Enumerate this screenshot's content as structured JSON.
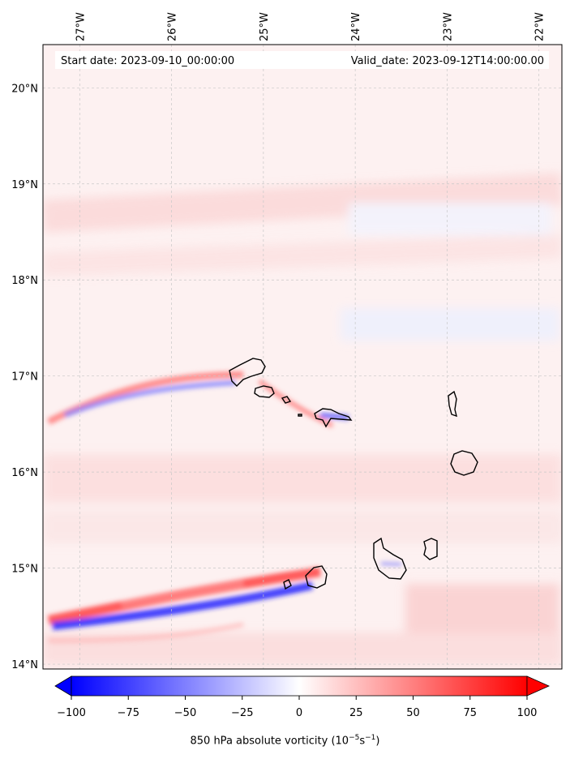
{
  "map": {
    "start_label": "Start date: 2023-09-10_00:00:00",
    "valid_label": "Valid_date: 2023-09-12T14:00:00.00",
    "lon_labels": [
      "27°W",
      "26°W",
      "25°W",
      "24°W",
      "23°W",
      "22°W"
    ],
    "lat_labels": [
      "20°N",
      "19°N",
      "18°N",
      "17°N",
      "16°N",
      "15°N",
      "14°N"
    ],
    "lon_values": [
      -27,
      -26,
      -25,
      -24,
      -23,
      -22
    ],
    "lat_values": [
      20,
      19,
      18,
      17,
      16,
      15,
      14
    ],
    "extent": {
      "lon_min": -27.4,
      "lon_max": -21.75,
      "lat_min": 13.95,
      "lat_max": 20.45
    }
  },
  "colorbar": {
    "ticks": [
      "−100",
      "−75",
      "−50",
      "−25",
      "0",
      "25",
      "50",
      "75",
      "100"
    ],
    "tick_values": [
      -100,
      -75,
      -50,
      -25,
      0,
      25,
      50,
      75,
      100
    ],
    "range": [
      -100,
      100
    ],
    "colormap": "bwr",
    "label_main": "850 hPa absolute vorticity (10",
    "label_exp1": "−5",
    "label_mid": "s",
    "label_exp2": "−1",
    "label_end": ")"
  },
  "colors": {
    "neg": "#0000ff",
    "zero": "#ffffff",
    "pos": "#ff0000",
    "coast": "#000000"
  }
}
